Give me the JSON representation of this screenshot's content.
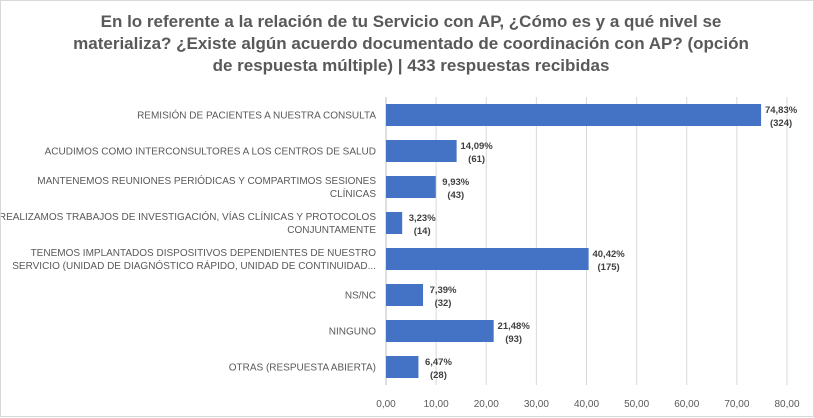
{
  "chart_data": {
    "type": "bar",
    "orientation": "horizontal",
    "title": "En lo referente a la relación de tu Servicio con AP, ¿Cómo es y a qué nivel se materializa? ¿Existe algún acuerdo documentado de coordinación con AP? (opción de respuesta múltiple) | 433 respuestas recibidas",
    "categories": [
      [
        "REMISIÓN DE PACIENTES A NUESTRA CONSULTA"
      ],
      [
        "ACUDIMOS COMO INTERCONSULTORES A LOS CENTROS DE SALUD"
      ],
      [
        "MANTENEMOS REUNIONES PERIÓDICAS Y COMPARTIMOS SESIONES",
        "CLÍNICAS"
      ],
      [
        "REALIZAMOS TRABAJOS DE INVESTIGACIÓN, VÍAS CLÍNICAS Y PROTOCOLOS",
        "CONJUNTAMENTE"
      ],
      [
        "TENEMOS IMPLANTADOS DISPOSITIVOS DEPENDIENTES DE NUESTRO",
        "SERVICIO (UNIDAD DE DIAGNÓSTICO RÁPIDO, UNIDAD DE CONTINUIDAD..."
      ],
      [
        "NS/NC"
      ],
      [
        "NINGUNO"
      ],
      [
        "OTRAS (RESPUESTA ABIERTA)"
      ]
    ],
    "values": [
      74.83,
      14.09,
      9.93,
      3.23,
      40.42,
      7.39,
      21.48,
      6.47
    ],
    "value_labels": [
      "74,83%",
      "14,09%",
      "9,93%",
      "3,23%",
      "40,42%",
      "7,39%",
      "21,48%",
      "6,47%"
    ],
    "counts": [
      "(324)",
      "(61)",
      "(43)",
      "(14)",
      "(175)",
      "(32)",
      "(93)",
      "(28)"
    ],
    "xlim": [
      0,
      80
    ],
    "x_ticks": [
      "0,00",
      "10,00",
      "20,00",
      "30,00",
      "40,00",
      "50,00",
      "60,00",
      "70,00",
      "80,00"
    ],
    "xlabel": "",
    "ylabel": "",
    "bar_color": "#4472c4",
    "grid": true
  }
}
